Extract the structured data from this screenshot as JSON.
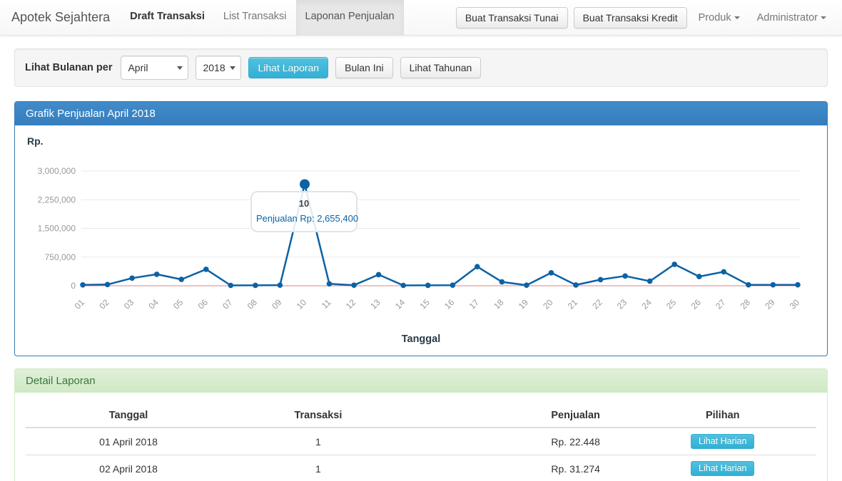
{
  "navbar": {
    "brand": "Apotek Sejahtera",
    "items": [
      {
        "label": "Draft Transaksi"
      },
      {
        "label": "List Transaksi"
      },
      {
        "label": "Laponan Penjualan"
      }
    ],
    "buttons": [
      {
        "label": "Buat Transaksi Tunai"
      },
      {
        "label": "Buat Transaksi Kredit"
      }
    ],
    "dropdowns": [
      {
        "label": "Produk"
      },
      {
        "label": "Administrator"
      }
    ]
  },
  "filter": {
    "label": "Lihat Bulanan per",
    "month_selected": "April",
    "year_selected": "2018",
    "submit_label": "Lihat Laporan",
    "this_month_label": "Bulan Ini",
    "yearly_label": "Lihat Tahunan"
  },
  "chart_panel": {
    "title": "Grafik Penjualan April 2018",
    "y_unit": "Rp.",
    "x_title": "Tanggal"
  },
  "chart_data": {
    "type": "line",
    "title": "Grafik Penjualan April 2018",
    "xlabel": "Tanggal",
    "ylabel": "Rp.",
    "x": [
      "01",
      "02",
      "03",
      "04",
      "05",
      "06",
      "07",
      "08",
      "09",
      "10",
      "11",
      "12",
      "13",
      "14",
      "15",
      "16",
      "17",
      "18",
      "19",
      "20",
      "21",
      "22",
      "23",
      "24",
      "25",
      "26",
      "27",
      "28",
      "29",
      "30"
    ],
    "values": [
      22448,
      31274,
      200000,
      300000,
      165000,
      430000,
      10000,
      12000,
      15000,
      2655400,
      50000,
      15000,
      290000,
      10000,
      12000,
      15000,
      500000,
      100000,
      15000,
      340000,
      20000,
      160000,
      255000,
      120000,
      560000,
      240000,
      365000,
      25000,
      25000,
      25000
    ],
    "ylim": [
      0,
      3000000
    ],
    "y_ticks": [
      0,
      750000,
      1500000,
      2250000,
      3000000
    ],
    "y_tick_labels": [
      "0",
      "750,000",
      "1,500,000",
      "2,250,000",
      "3,000,000"
    ],
    "grid": true,
    "line_color": "#0b62a4",
    "zero_line_color": "#e0837f",
    "grid_color": "#e9e9e9",
    "highlight": {
      "index": 9,
      "label": "10",
      "value": 2655400,
      "value_text": "Penjualan Rp: 2,655,400"
    }
  },
  "detail_panel": {
    "title": "Detail Laporan",
    "table": {
      "headers": [
        "Tanggal",
        "Transaksi",
        "Penjualan",
        "Pilihan"
      ],
      "rows": [
        {
          "tanggal": "01 April 2018",
          "transaksi": "1",
          "penjualan": "Rp. 22.448",
          "action": "Lihat Harian"
        },
        {
          "tanggal": "02 April 2018",
          "transaksi": "1",
          "penjualan": "Rp. 31.274",
          "action": "Lihat Harian"
        }
      ]
    }
  },
  "colors": {
    "primary_header": "#337ab7",
    "info_button": "#5bc0de",
    "success_header_bg": "#dff0d8",
    "success_text": "#3c763d",
    "chart_line": "#0b62a4",
    "chart_zero_line": "#e0837f"
  }
}
